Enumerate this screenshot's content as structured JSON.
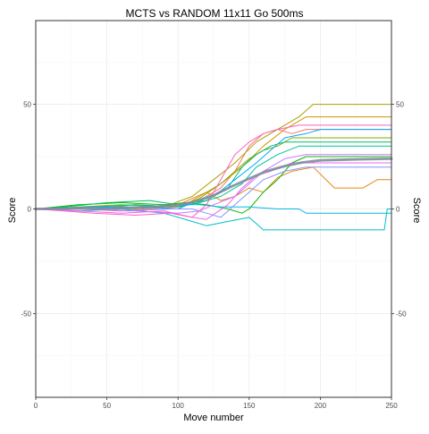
{
  "chart_data": {
    "type": "line",
    "title": "MCTS vs RANDOM 11x11 Go 500ms",
    "xlabel": "Move number",
    "ylabel": "Score",
    "ylabel_right": "Score",
    "xlim": [
      0,
      250
    ],
    "ylim": [
      -90,
      90
    ],
    "x_ticks": [
      0,
      50,
      100,
      150,
      200,
      250
    ],
    "y_ticks": [
      -50,
      0,
      50
    ],
    "grid": true,
    "legend": "none",
    "series": [
      {
        "color": "#F8766D",
        "values": [
          [
            0,
            0
          ],
          [
            30,
            0
          ],
          [
            60,
            -1
          ],
          [
            80,
            0
          ],
          [
            100,
            1
          ],
          [
            115,
            4
          ],
          [
            130,
            10
          ],
          [
            140,
            18
          ],
          [
            150,
            30
          ],
          [
            160,
            36
          ],
          [
            170,
            38
          ],
          [
            180,
            36
          ],
          [
            190,
            38
          ],
          [
            200,
            38
          ],
          [
            210,
            38
          ],
          [
            250,
            38
          ]
        ]
      },
      {
        "color": "#E68613",
        "values": [
          [
            0,
            0
          ],
          [
            40,
            1
          ],
          [
            70,
            0
          ],
          [
            100,
            2
          ],
          [
            110,
            5
          ],
          [
            120,
            8
          ],
          [
            130,
            4
          ],
          [
            140,
            6
          ],
          [
            150,
            10
          ],
          [
            160,
            8
          ],
          [
            170,
            15
          ],
          [
            180,
            18
          ],
          [
            195,
            20
          ],
          [
            210,
            10
          ],
          [
            230,
            10
          ],
          [
            240,
            14
          ],
          [
            250,
            14
          ]
        ]
      },
      {
        "color": "#CD9600",
        "values": [
          [
            0,
            0
          ],
          [
            40,
            0
          ],
          [
            70,
            1
          ],
          [
            100,
            0
          ],
          [
            115,
            6
          ],
          [
            130,
            12
          ],
          [
            145,
            20
          ],
          [
            160,
            30
          ],
          [
            175,
            38
          ],
          [
            190,
            44
          ],
          [
            200,
            44
          ],
          [
            215,
            44
          ],
          [
            250,
            44
          ]
        ]
      },
      {
        "color": "#ABA300",
        "values": [
          [
            0,
            0
          ],
          [
            30,
            1
          ],
          [
            60,
            2
          ],
          [
            90,
            1
          ],
          [
            110,
            6
          ],
          [
            125,
            14
          ],
          [
            140,
            22
          ],
          [
            155,
            32
          ],
          [
            170,
            38
          ],
          [
            185,
            44
          ],
          [
            195,
            50
          ],
          [
            210,
            50
          ],
          [
            250,
            50
          ]
        ]
      },
      {
        "color": "#7CAE00",
        "values": [
          [
            0,
            0
          ],
          [
            40,
            0
          ],
          [
            70,
            2
          ],
          [
            100,
            1
          ],
          [
            115,
            5
          ],
          [
            130,
            12
          ],
          [
            140,
            18
          ],
          [
            150,
            24
          ],
          [
            160,
            28
          ],
          [
            170,
            30
          ],
          [
            180,
            34
          ],
          [
            200,
            34
          ],
          [
            250,
            34
          ]
        ]
      },
      {
        "color": "#0CB702",
        "values": [
          [
            0,
            0
          ],
          [
            30,
            2
          ],
          [
            60,
            3
          ],
          [
            90,
            2
          ],
          [
            105,
            3
          ],
          [
            120,
            2
          ],
          [
            135,
            0
          ],
          [
            145,
            -2
          ],
          [
            150,
            0
          ],
          [
            160,
            8
          ],
          [
            170,
            14
          ],
          [
            180,
            22
          ],
          [
            190,
            25
          ],
          [
            210,
            25
          ],
          [
            250,
            25
          ]
        ]
      },
      {
        "color": "#00BE67",
        "values": [
          [
            0,
            0
          ],
          [
            20,
            1
          ],
          [
            50,
            3
          ],
          [
            80,
            4
          ],
          [
            100,
            2
          ],
          [
            120,
            4
          ],
          [
            135,
            10
          ],
          [
            145,
            20
          ],
          [
            155,
            26
          ],
          [
            165,
            30
          ],
          [
            175,
            32
          ],
          [
            190,
            32
          ],
          [
            250,
            32
          ]
        ]
      },
      {
        "color": "#00C19A",
        "values": [
          [
            0,
            0
          ],
          [
            40,
            1
          ],
          [
            70,
            2
          ],
          [
            100,
            1
          ],
          [
            115,
            3
          ],
          [
            130,
            6
          ],
          [
            145,
            12
          ],
          [
            155,
            20
          ],
          [
            170,
            26
          ],
          [
            185,
            30
          ],
          [
            200,
            30
          ],
          [
            250,
            30
          ]
        ]
      },
      {
        "color": "#00BFC4",
        "values": [
          [
            0,
            0
          ],
          [
            30,
            -1
          ],
          [
            60,
            0
          ],
          [
            90,
            -2
          ],
          [
            110,
            -6
          ],
          [
            120,
            -8
          ],
          [
            135,
            -6
          ],
          [
            150,
            -4
          ],
          [
            160,
            -10
          ],
          [
            180,
            -10
          ],
          [
            200,
            -10
          ],
          [
            230,
            -10
          ],
          [
            245,
            -10
          ],
          [
            247,
            0
          ],
          [
            250,
            0
          ]
        ]
      },
      {
        "color": "#00B8E7",
        "values": [
          [
            0,
            0
          ],
          [
            40,
            0
          ],
          [
            70,
            1
          ],
          [
            100,
            2
          ],
          [
            115,
            2
          ],
          [
            130,
            1
          ],
          [
            150,
            1
          ],
          [
            170,
            0
          ],
          [
            185,
            0
          ],
          [
            190,
            -2
          ],
          [
            200,
            -2
          ],
          [
            220,
            -2
          ],
          [
            240,
            -2
          ],
          [
            250,
            -2
          ]
        ]
      },
      {
        "color": "#00A9FF",
        "values": [
          [
            0,
            0
          ],
          [
            40,
            1
          ],
          [
            70,
            1
          ],
          [
            100,
            0
          ],
          [
            110,
            3
          ],
          [
            125,
            6
          ],
          [
            140,
            14
          ],
          [
            155,
            22
          ],
          [
            165,
            28
          ],
          [
            175,
            34
          ],
          [
            190,
            36
          ],
          [
            200,
            38
          ],
          [
            250,
            38
          ]
        ]
      },
      {
        "color": "#8494FF",
        "values": [
          [
            0,
            0
          ],
          [
            35,
            0
          ],
          [
            65,
            -1
          ],
          [
            95,
            0
          ],
          [
            110,
            0
          ],
          [
            120,
            -2
          ],
          [
            130,
            -4
          ],
          [
            140,
            2
          ],
          [
            150,
            8
          ],
          [
            160,
            14
          ],
          [
            175,
            18
          ],
          [
            190,
            20
          ],
          [
            210,
            20
          ],
          [
            250,
            20
          ]
        ]
      },
      {
        "color": "#C77CFF",
        "values": [
          [
            0,
            0
          ],
          [
            40,
            0
          ],
          [
            70,
            -1
          ],
          [
            100,
            -2
          ],
          [
            115,
            -1
          ],
          [
            125,
            2
          ],
          [
            140,
            6
          ],
          [
            150,
            12
          ],
          [
            160,
            18
          ],
          [
            175,
            24
          ],
          [
            190,
            26
          ],
          [
            210,
            26
          ],
          [
            250,
            26
          ]
        ]
      },
      {
        "color": "#ED68ED",
        "values": [
          [
            0,
            0
          ],
          [
            30,
            -1
          ],
          [
            60,
            -2
          ],
          [
            90,
            -1
          ],
          [
            110,
            -4
          ],
          [
            120,
            -5
          ],
          [
            135,
            2
          ],
          [
            145,
            10
          ],
          [
            155,
            16
          ],
          [
            165,
            18
          ],
          [
            180,
            22
          ],
          [
            195,
            22
          ],
          [
            210,
            22
          ],
          [
            250,
            22
          ]
        ]
      },
      {
        "color": "#FF61C3",
        "values": [
          [
            0,
            0
          ],
          [
            20,
            -1
          ],
          [
            40,
            -2
          ],
          [
            70,
            -3
          ],
          [
            95,
            -2
          ],
          [
            110,
            -4
          ],
          [
            120,
            2
          ],
          [
            130,
            14
          ],
          [
            140,
            26
          ],
          [
            150,
            32
          ],
          [
            160,
            36
          ],
          [
            170,
            38
          ],
          [
            185,
            40
          ],
          [
            200,
            40
          ],
          [
            250,
            40
          ]
        ]
      }
    ],
    "smooth": {
      "color": "#7f8c9f",
      "values": [
        [
          0,
          0
        ],
        [
          50,
          0.3
        ],
        [
          75,
          0.6
        ],
        [
          100,
          1.8
        ],
        [
          112,
          3.5
        ],
        [
          125,
          6.5
        ],
        [
          137,
          10.5
        ],
        [
          150,
          14.5
        ],
        [
          162,
          18
        ],
        [
          175,
          20.5
        ],
        [
          187,
          22.2
        ],
        [
          200,
          23.2
        ],
        [
          225,
          23.7
        ],
        [
          250,
          24
        ]
      ]
    }
  }
}
